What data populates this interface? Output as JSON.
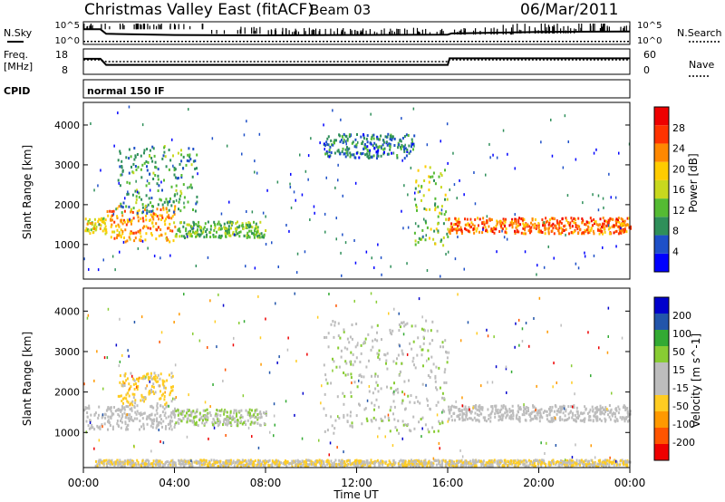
{
  "header": {
    "station": "Christmas Valley East (fitACF)",
    "beam": "Beam 03",
    "date": "06/Mar/2011"
  },
  "side_labels": {
    "nsky": "N.Sky",
    "nsearch": "N.Search",
    "freq": "Freq.",
    "freq_unit": "[MHz]",
    "nave": "Nave",
    "cpid": "CPID",
    "cpid_value": "normal 150 IF"
  },
  "noise_axis": {
    "left_ticks": [
      "10^5",
      "10^0"
    ],
    "right_ticks": [
      "10^5",
      "10^0"
    ]
  },
  "freq_axis": {
    "left_ticks": [
      "18",
      "8"
    ],
    "right_ticks": [
      "60",
      "0"
    ]
  },
  "x_axis": {
    "label": "Time UT",
    "ticks": [
      "00:00",
      "04:00",
      "08:00",
      "12:00",
      "16:00",
      "20:00",
      "00:00"
    ]
  },
  "colors": {
    "power_scale": [
      "#0000ff",
      "#1e50c8",
      "#2f8f5a",
      "#55bb33",
      "#c8d81e",
      "#ffcc00",
      "#ff8800",
      "#ff3300",
      "#ee0000"
    ],
    "velocity_scale": [
      "#ee0000",
      "#ff5500",
      "#ff9900",
      "#ffcc22",
      "#bdbdbd",
      "#bdbdbd",
      "#88cc33",
      "#33aa33",
      "#2255aa",
      "#0000cc"
    ],
    "ground_scatter": "#bdbdbd"
  },
  "chart_data": [
    {
      "type": "line",
      "panel": "noise",
      "x": [
        "00:00",
        "00:45",
        "01:00",
        "04:00",
        "08:00",
        "12:00",
        "16:00",
        "16:10",
        "20:00",
        "24:00"
      ],
      "series": [
        {
          "name": "N.Sky",
          "values": [
            3.5,
            3.5,
            2.3,
            2.0,
            1.9,
            2.0,
            2.1,
            2.4,
            2.8,
            2.9
          ]
        },
        {
          "name": "N.Search",
          "values": [
            0.3,
            0.3,
            0.3,
            0.3,
            0.3,
            0.3,
            0.3,
            0.3,
            0.3,
            0.3
          ]
        }
      ],
      "ylim": [
        0,
        5
      ]
    },
    {
      "type": "line",
      "panel": "freq",
      "x": [
        "00:00",
        "00:45",
        "01:00",
        "16:00",
        "16:05",
        "24:00"
      ],
      "series": [
        {
          "name": "Freq.",
          "values": [
            14.3,
            14.3,
            11.5,
            11.5,
            14.5,
            14.5
          ]
        },
        {
          "name": "Nave",
          "values": [
            35,
            35,
            30,
            30,
            35,
            35
          ]
        }
      ],
      "ylim": [
        8,
        18
      ]
    },
    {
      "type": "heatmap",
      "panel": "power",
      "ylabel": "Slant Range [km]",
      "colorbar_label": "Power [dB]",
      "colorbar_ticks": [
        4,
        8,
        12,
        16,
        20,
        24,
        28
      ],
      "ylim": [
        200,
        4500
      ],
      "yticks": [
        1000,
        2000,
        3000,
        4000
      ],
      "features": [
        {
          "start": "00:00",
          "end": "01:00",
          "range": [
            1300,
            1700
          ],
          "level": 18
        },
        {
          "start": "01:00",
          "end": "04:00",
          "range": [
            1100,
            2000
          ],
          "level": 22
        },
        {
          "start": "01:30",
          "end": "05:00",
          "range": [
            1800,
            3500
          ],
          "level": 10
        },
        {
          "start": "04:00",
          "end": "08:00",
          "range": [
            1200,
            1600
          ],
          "level": 12
        },
        {
          "start": "10:30",
          "end": "14:30",
          "range": [
            3200,
            3800
          ],
          "level": 8
        },
        {
          "start": "14:30",
          "end": "16:00",
          "range": [
            1000,
            3000
          ],
          "level": 14
        },
        {
          "start": "16:00",
          "end": "24:00",
          "range": [
            1300,
            1700
          ],
          "level": 24
        }
      ]
    },
    {
      "type": "heatmap",
      "panel": "velocity",
      "ylabel": "Slant Range [km]",
      "colorbar_label": "Velocity [m s^-1]",
      "colorbar_ticks": [
        200,
        100,
        50,
        15,
        -15,
        -50,
        -100,
        -200
      ],
      "ylim": [
        200,
        4500
      ],
      "yticks": [
        1000,
        2000,
        3000,
        4000
      ],
      "features": [
        {
          "start": "00:00",
          "end": "04:00",
          "range": [
            1100,
            1700
          ],
          "velocity": 0
        },
        {
          "start": "01:30",
          "end": "04:00",
          "range": [
            1700,
            2500
          ],
          "velocity": -60
        },
        {
          "start": "04:00",
          "end": "08:00",
          "range": [
            1200,
            1600
          ],
          "velocity": 40
        },
        {
          "start": "10:30",
          "end": "16:00",
          "range": [
            1000,
            3800
          ],
          "velocity": 30
        },
        {
          "start": "16:00",
          "end": "24:00",
          "range": [
            1300,
            1700
          ],
          "velocity": 0
        },
        {
          "start": "00:30",
          "end": "24:00",
          "range": [
            200,
            350
          ],
          "velocity": -40
        }
      ]
    }
  ]
}
